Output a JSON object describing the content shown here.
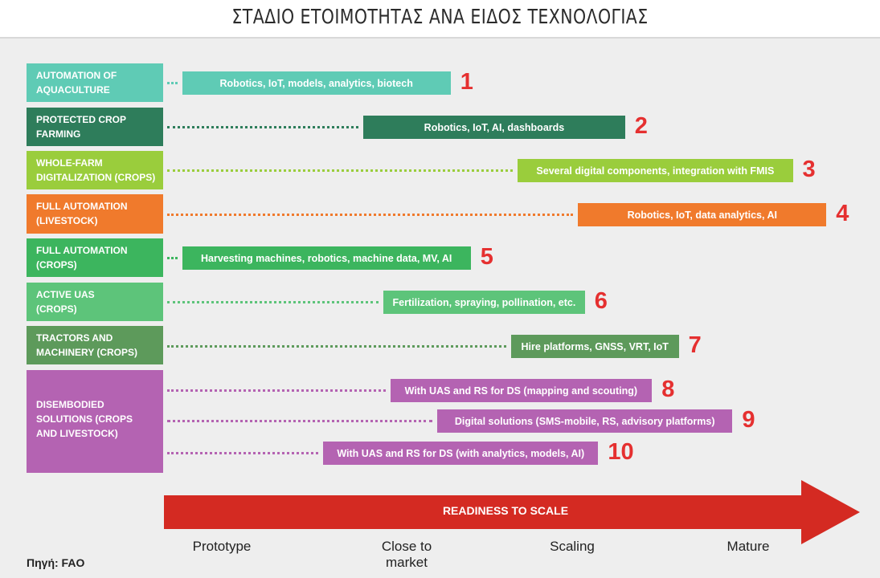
{
  "title": "ΣΤΑΔΙΟ ΕΤΟΙΜΟΤΗΤΑΣ ΑΝΑ ΕΙΔΟΣ ΤΕΧΝΟΛΟΓΙΑΣ",
  "categories": [
    {
      "label": "AUTOMATION OF\nAQUACULTURE",
      "color": "#5fcbb5"
    },
    {
      "label": "PROTECTED CROP\nFARMING",
      "color": "#2e7d5b"
    },
    {
      "label": "WHOLE-FARM\nDIGITALIZATION (CROPS)",
      "color": "#9acd3c"
    },
    {
      "label": "FULL AUTOMATION\n(LIVESTOCK)",
      "color": "#f07a2c"
    },
    {
      "label": "FULL AUTOMATION\n(CROPS)",
      "color": "#3cb55e"
    },
    {
      "label": "ACTIVE UAS\n(CROPS)",
      "color": "#5dc47a"
    },
    {
      "label": "TRACTORS AND\nMACHINERY (CROPS)",
      "color": "#5d9a5b"
    },
    {
      "label": "DISEMBODIED\nSOLUTIONS (CROPS\nAND LIVESTOCK)",
      "color": "#b463b2"
    }
  ],
  "technologies": [
    {
      "number": "1",
      "label": "Robotics, IoT, models, analytics, biotech",
      "color": "#5fcbb5",
      "readiness_start_pct": 2,
      "readiness_end_pct": 42
    },
    {
      "number": "2",
      "label": "Robotics,  IoT, AI, dashboards",
      "color": "#2e7d5b",
      "readiness_start_pct": 29,
      "readiness_end_pct": 68
    },
    {
      "number": "3",
      "label": "Several digital components, integration with FMIS",
      "color": "#9acd3c",
      "readiness_start_pct": 52,
      "readiness_end_pct": 93
    },
    {
      "number": "4",
      "label": "Robotics, IoT, data analytics, AI",
      "color": "#f07a2c",
      "readiness_start_pct": 61,
      "readiness_end_pct": 98
    },
    {
      "number": "5",
      "label": "Harvesting machines, robotics, machine data, MV, AI",
      "color": "#3cb55e",
      "readiness_start_pct": 2,
      "readiness_end_pct": 45
    },
    {
      "number": "6",
      "label": "Fertilization, spraying,  pollination, etc.",
      "color": "#5dc47a",
      "readiness_start_pct": 32,
      "readiness_end_pct": 62
    },
    {
      "number": "7",
      "label": "Hire platforms, GNSS, VRT, IoT",
      "color": "#5d9a5b",
      "readiness_start_pct": 51,
      "readiness_end_pct": 76
    },
    {
      "number": "8",
      "label": "With UAS and RS for DS (mapping and scouting)",
      "color": "#b463b2",
      "readiness_start_pct": 33,
      "readiness_end_pct": 72
    },
    {
      "number": "9",
      "label": "Digital solutions (SMS-mobile, RS, advisory platforms)",
      "color": "#b463b2",
      "readiness_start_pct": 40,
      "readiness_end_pct": 84
    },
    {
      "number": "10",
      "label": "With UAS and RS for DS (with analytics, models, AI)",
      "color": "#b463b2",
      "readiness_start_pct": 23,
      "readiness_end_pct": 64
    }
  ],
  "arrow": {
    "label": "READINESS TO SCALE",
    "color": "#d42a22"
  },
  "stages": [
    "Prototype",
    "Close to\nmarket",
    "Scaling",
    "Mature"
  ],
  "source": "Πηγή: FAO"
}
